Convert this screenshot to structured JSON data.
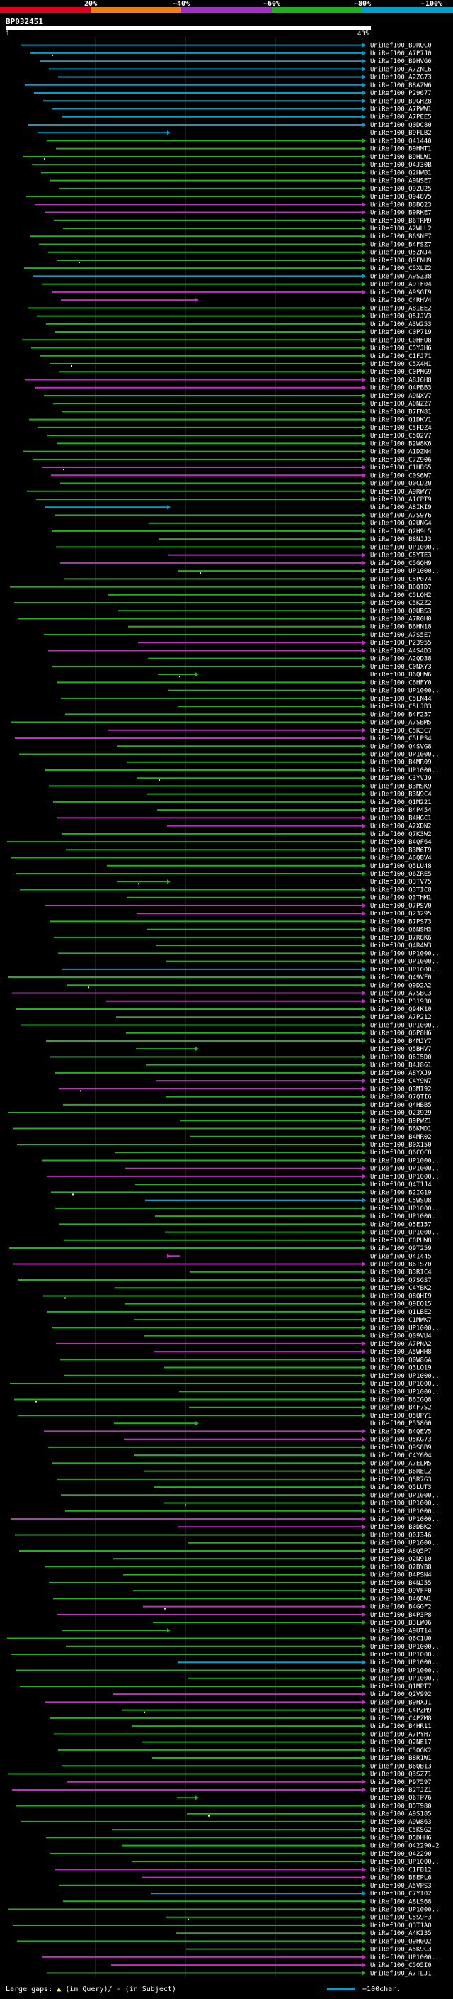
{
  "scale": {
    "labels": [
      "20%",
      "~40%",
      "~60%",
      "~80%",
      "~100%"
    ],
    "colors": [
      "#e0001b",
      "#f08010",
      "#a030c0",
      "#20b020",
      "#00a0c8"
    ]
  },
  "query": {
    "id": "BP032451",
    "start": "1",
    "end": "435"
  },
  "hits": [
    "UniRef100_B9RQC0",
    "UniRef100_A7P7J0",
    "UniRef100_B9HVG6",
    "UniRef100_A7ZNL6",
    "UniRef100_A2ZG73",
    "UniRef100_B8AZW6",
    "UniRef100_P29677",
    "UniRef100_B9GHZ8",
    "UniRef100_A7PWW1",
    "UniRef100_A7PEE5",
    "UniRef100_Q0DC80",
    "UniRef100_B9FLB2",
    "UniRef100_Q41440",
    "UniRef100_B9HMT1",
    "UniRef100_B9HLW1",
    "UniRef100_Q4J30B",
    "UniRef100_Q2HWB1",
    "UniRef100_A9NSE7",
    "UniRef100_Q9ZU25",
    "UniRef100_Q948V5",
    "UniRef100_B8BQ23",
    "UniRef100_B9RKE7",
    "UniRef100_B6TRM9",
    "UniRef100_A2WLL2",
    "UniRef100_B6SNF7",
    "UniRef100_B4FSZ7",
    "UniRef100_Q5ZNJ4",
    "UniRef100_Q9FNU9",
    "UniRef100_C5XLZ2",
    "UniRef100_A9SZ38",
    "UniRef100_A9TF04",
    "UniRef100_A9SGI9",
    "UniRef100_C4RHV4",
    "UniRef100_A8IEE2",
    "UniRef100_Q5JJV3",
    "UniRef100_A3W253",
    "UniRef100_C0P719",
    "UniRef100_C0HFU8",
    "UniRef100_C5YJH6",
    "UniRef100_C1FJ71",
    "UniRef100_C5X4H1",
    "UniRef100_C0PMG9",
    "UniRef100_A8J6H8",
    "UniRef100_Q4PBB3",
    "UniRef100_A9NXV7",
    "UniRef100_A0NZ27",
    "UniRef100_B7FN81",
    "UniRef100_Q1DKV1",
    "UniRef100_C5FDZ4",
    "UniRef100_C5Q2V7",
    "UniRef100_B2W8K6",
    "UniRef100_A1DZN4",
    "UniRef100_C7Z906",
    "UniRef100_C1HBS5",
    "UniRef100_C0S6W7",
    "UniRef100_Q0CD20",
    "UniRef100_A9RWY7",
    "UniRef100_A1CPT9",
    "UniRef100_A8IKI9",
    "UniRef100_A7S9Y6",
    "UniRef100_Q2UNG4",
    "UniRef100_Q2H9L5",
    "UniRef100_B8NJJ3",
    "UniRef100_UP1000..",
    "UniRef100_C5YTE3",
    "UniRef100_C5GQH9",
    "UniRef100_UP1000..",
    "UniRef100_C5P074",
    "UniRef100_B6QID7",
    "UniRef100_C5LQH2",
    "UniRef100_C5KZZ2",
    "UniRef100_Q0UBS3",
    "UniRef100_A7R0H0",
    "UniRef100_B6HN18",
    "UniRef100_A7S5E7",
    "UniRef100_P23955",
    "UniRef100_A4S4D3",
    "UniRef100_A2QD38",
    "UniRef100_C0NXY3",
    "UniRef100_B6QHW6",
    "UniRef100_C6HFY0",
    "UniRef100_UP1000..",
    "UniRef100_C5LN44",
    "UniRef100_C5LJB3",
    "UniRef100_B4F257",
    "UniRef100_A7SBM5",
    "UniRef100_C5K3C7",
    "UniRef100_C5LPS4",
    "UniRef100_Q4SVG8",
    "UniRef100_UP1000..",
    "UniRef100_B4MR09",
    "UniRef100_UP1000..",
    "UniRef100_C3YVJ9",
    "UniRef100_B3MSK9",
    "UniRef100_B3N9C4",
    "UniRef100_Q1M221",
    "UniRef100_B4P454",
    "UniRef100_B4HGC1",
    "UniRef100_A2XDN2",
    "UniRef100_Q7K3W2",
    "UniRef100_B4QF64",
    "UniRef100_B3M6T9",
    "UniRef100_A6QBV4",
    "UniRef100_Q5LU48",
    "UniRef100_Q6ZRE5",
    "UniRef100_Q3TV75",
    "UniRef100_Q3TIC8",
    "UniRef100_Q3THM1",
    "UniRef100_Q7PSV0",
    "UniRef100_Q23295",
    "UniRef100_B7PS73",
    "UniRef100_Q6NSH3",
    "UniRef100_B7R8K6",
    "UniRef100_Q4R4W3",
    "UniRef100_UP1000..",
    "UniRef100_UP1000..",
    "UniRef100_UP1000..",
    "UniRef100_Q49VF0",
    "UniRef100_Q9D2A2",
    "UniRef100_A7SBC3",
    "UniRef100_P31930",
    "UniRef100_Q94K10",
    "UniRef100_A7P212",
    "UniRef100_UP1000..",
    "UniRef100_Q6P8H6",
    "UniRef100_B4MJY7",
    "UniRef100_Q5BHV7",
    "UniRef100_Q6I5D0",
    "UniRef100_B4J861",
    "UniRef100_A8YXJ9",
    "UniRef100_C4Y9N7",
    "UniRef100_Q3MI92",
    "UniRef100_Q7QTI6",
    "UniRef100_Q4HBB5",
    "UniRef100_Q23929",
    "UniRef100_B9PWZ1",
    "UniRef100_B6KMD1",
    "UniRef100_B4MR02",
    "UniRef100_B0X150",
    "UniRef100_Q6CQC8",
    "UniRef100_UP1000..",
    "UniRef100_UP1000..",
    "UniRef100_UP1000..",
    "UniRef100_Q4T1J4",
    "UniRef100_B2IG19",
    "UniRef100_C5WSU8",
    "UniRef100_UP1000..",
    "UniRef100_UP1000..",
    "UniRef100_Q5E157",
    "UniRef100_UP1000..",
    "UniRef100_C0PUW8",
    "UniRef100_Q9T259",
    "UniRef100_Q41445",
    "UniRef100_B6TS70",
    "UniRef100_B3RIC4",
    "UniRef100_Q7SGS7",
    "UniRef100_C4YBK2",
    "UniRef100_Q8QHI9",
    "UniRef100_Q9EQ15",
    "UniRef100_Q1LBE2",
    "UniRef100_C1MWK7",
    "UniRef100_UP1000..",
    "UniRef100_Q09VU4",
    "UniRef100_A7PNA2",
    "UniRef100_A5WHH8",
    "UniRef100_Q0W86A",
    "UniRef100_Q3LQ19",
    "UniRef100_UP1000..",
    "UniRef100_UP1000..",
    "UniRef100_UP1000..",
    "UniRef100_B6IGQ8",
    "UniRef100_B4F7S2",
    "UniRef100_Q5UPY1",
    "UniRef100_P55860",
    "UniRef100_B4QEV5",
    "UniRef100_Q5KG73",
    "UniRef100_Q9S8B9",
    "UniRef100_C4Y604",
    "UniRef100_A7ELM5",
    "UniRef100_B6REL2",
    "UniRef100_Q5R7G3",
    "UniRef100_Q5LUT3",
    "UniRef100_UP1000..",
    "UniRef100_UP1000..",
    "UniRef100_UP1000..",
    "UniRef100_UP1000..",
    "UniRef100_B0DBK2",
    "UniRef100_Q0J346",
    "UniRef100_UP1000..",
    "UniRef100_A8Q5P7",
    "UniRef100_Q2N910",
    "UniRef100_Q2BYB8",
    "UniRef100_B4PSN4",
    "UniRef100_B4NJ55",
    "UniRef100_Q9VFF0",
    "UniRef100_B4QDW1",
    "UniRef100_B4GGF2",
    "UniRef100_B4P3P8",
    "UniRef100_B3LW06",
    "UniRef100_A9UT14",
    "UniRef100_Q6C1U0",
    "UniRef100_UP1000..",
    "UniRef100_UP1000..",
    "UniRef100_UP1000..",
    "UniRef100_UP1000..",
    "UniRef100_UP1000..",
    "UniRef100_Q1MPT7",
    "UniRef100_Q2V992",
    "UniRef100_B9HXJ1",
    "UniRef100_C4PZM9",
    "UniRef100_C4PZM8",
    "UniRef100_B4HR11",
    "UniRef100_A7PYH7",
    "UniRef100_Q2NE17",
    "UniRef100_C5OGK2",
    "UniRef100_B8R1W1",
    "UniRef100_B6QB13",
    "UniRef100_Q3SZ71",
    "UniRef100_P97597",
    "UniRef100_B2TJZ1",
    "UniRef100_Q6TP76",
    "UniRef100_B5T980",
    "UniRef100_A9S185",
    "UniRef100_A9W863",
    "UniRef100_C5KSG2",
    "UniRef100_B5DHH6",
    "UniRef100_O42290-2",
    "UniRef100_O42290",
    "UniRef100_UP1000..",
    "UniRef100_C1FB12",
    "UniRef100_B8EPL6",
    "UniRef100_A5VPS3",
    "UniRef100_C7YI02",
    "UniRef100_A8LS68",
    "UniRef100_UP1000..",
    "UniRef100_C5S9F3",
    "UniRef100_Q3T1A0",
    "UniRef100_A4KI35",
    "UniRef100_Q9H0Q2",
    "UniRef100_A5K9C3",
    "UniRef100_UP1000..",
    "UniRef100_C5O5I0",
    "UniRef100_A7TLJ1"
  ],
  "legend": {
    "gaps_label": "Large gaps:",
    "query_gap_note": "(in Query)/",
    "subject_gap_note": "(in Subject)",
    "scale_note": "=100char."
  }
}
